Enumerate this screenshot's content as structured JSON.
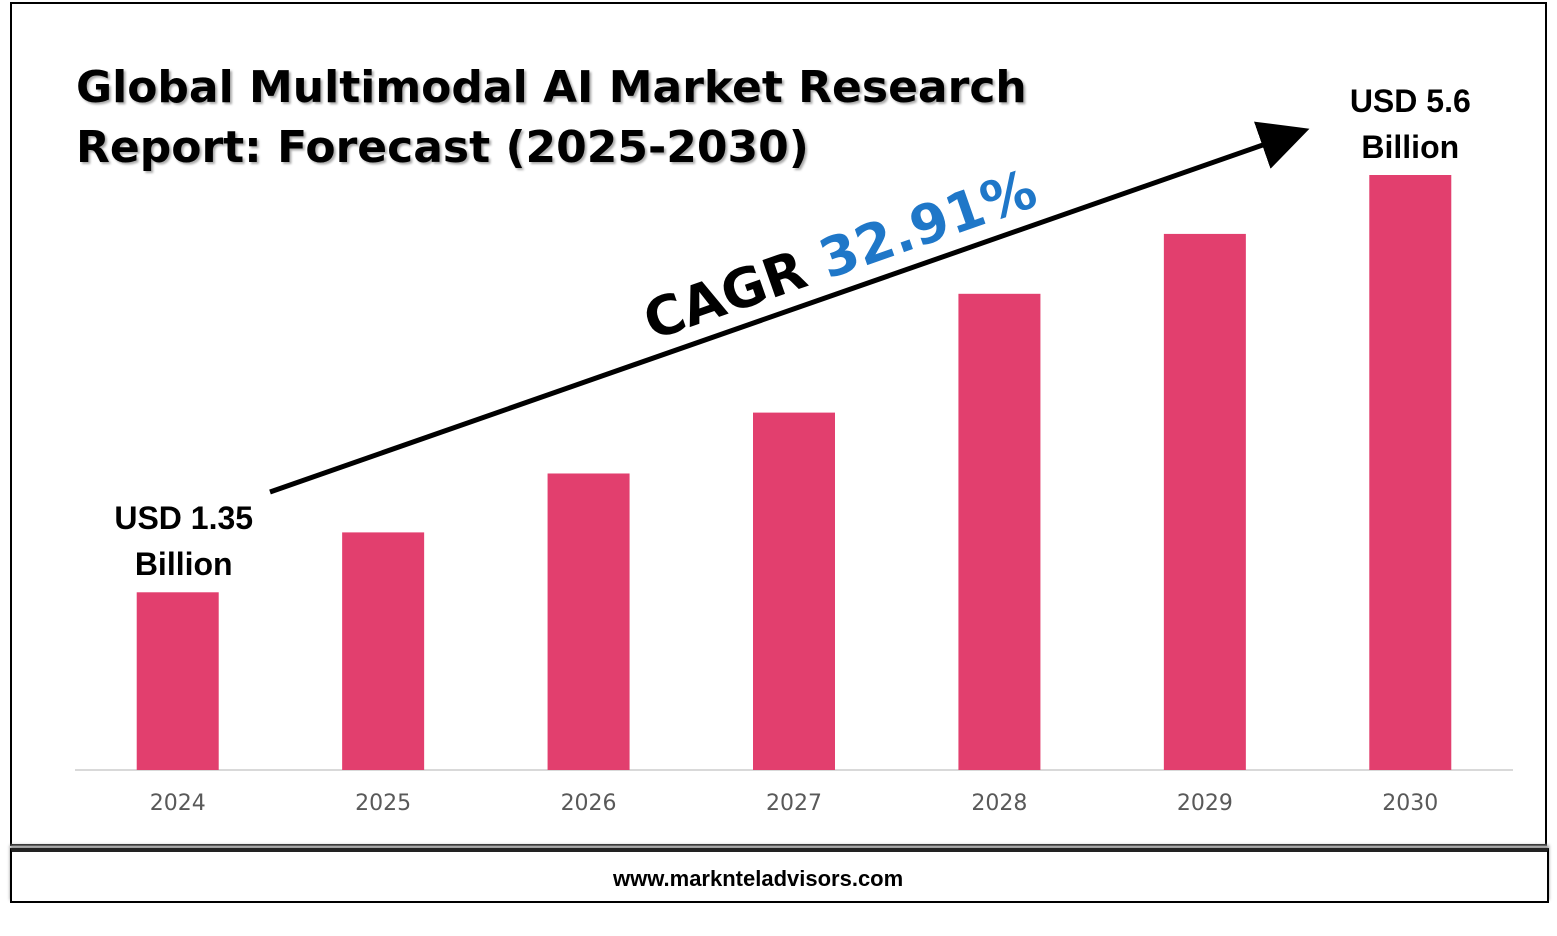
{
  "chart_data": {
    "type": "bar",
    "title": "Global Multimodal AI Market Research Report: Forecast (2025-2030)",
    "categories": [
      "2024",
      "2025",
      "2026",
      "2027",
      "2028",
      "2029",
      "2030"
    ],
    "values": [
      1.35,
      1.96,
      2.56,
      3.18,
      4.39,
      5.0,
      5.6
    ],
    "value_labels": [
      "USD 1.35 Billion",
      null,
      null,
      null,
      null,
      null,
      "USD 5.6 Billion"
    ],
    "color": "#e23f6e",
    "ylim": [
      -0.46,
      5.6
    ],
    "annotations": [
      "CAGR",
      "32.91%"
    ],
    "source": "www.marknteladvisors.com"
  }
}
